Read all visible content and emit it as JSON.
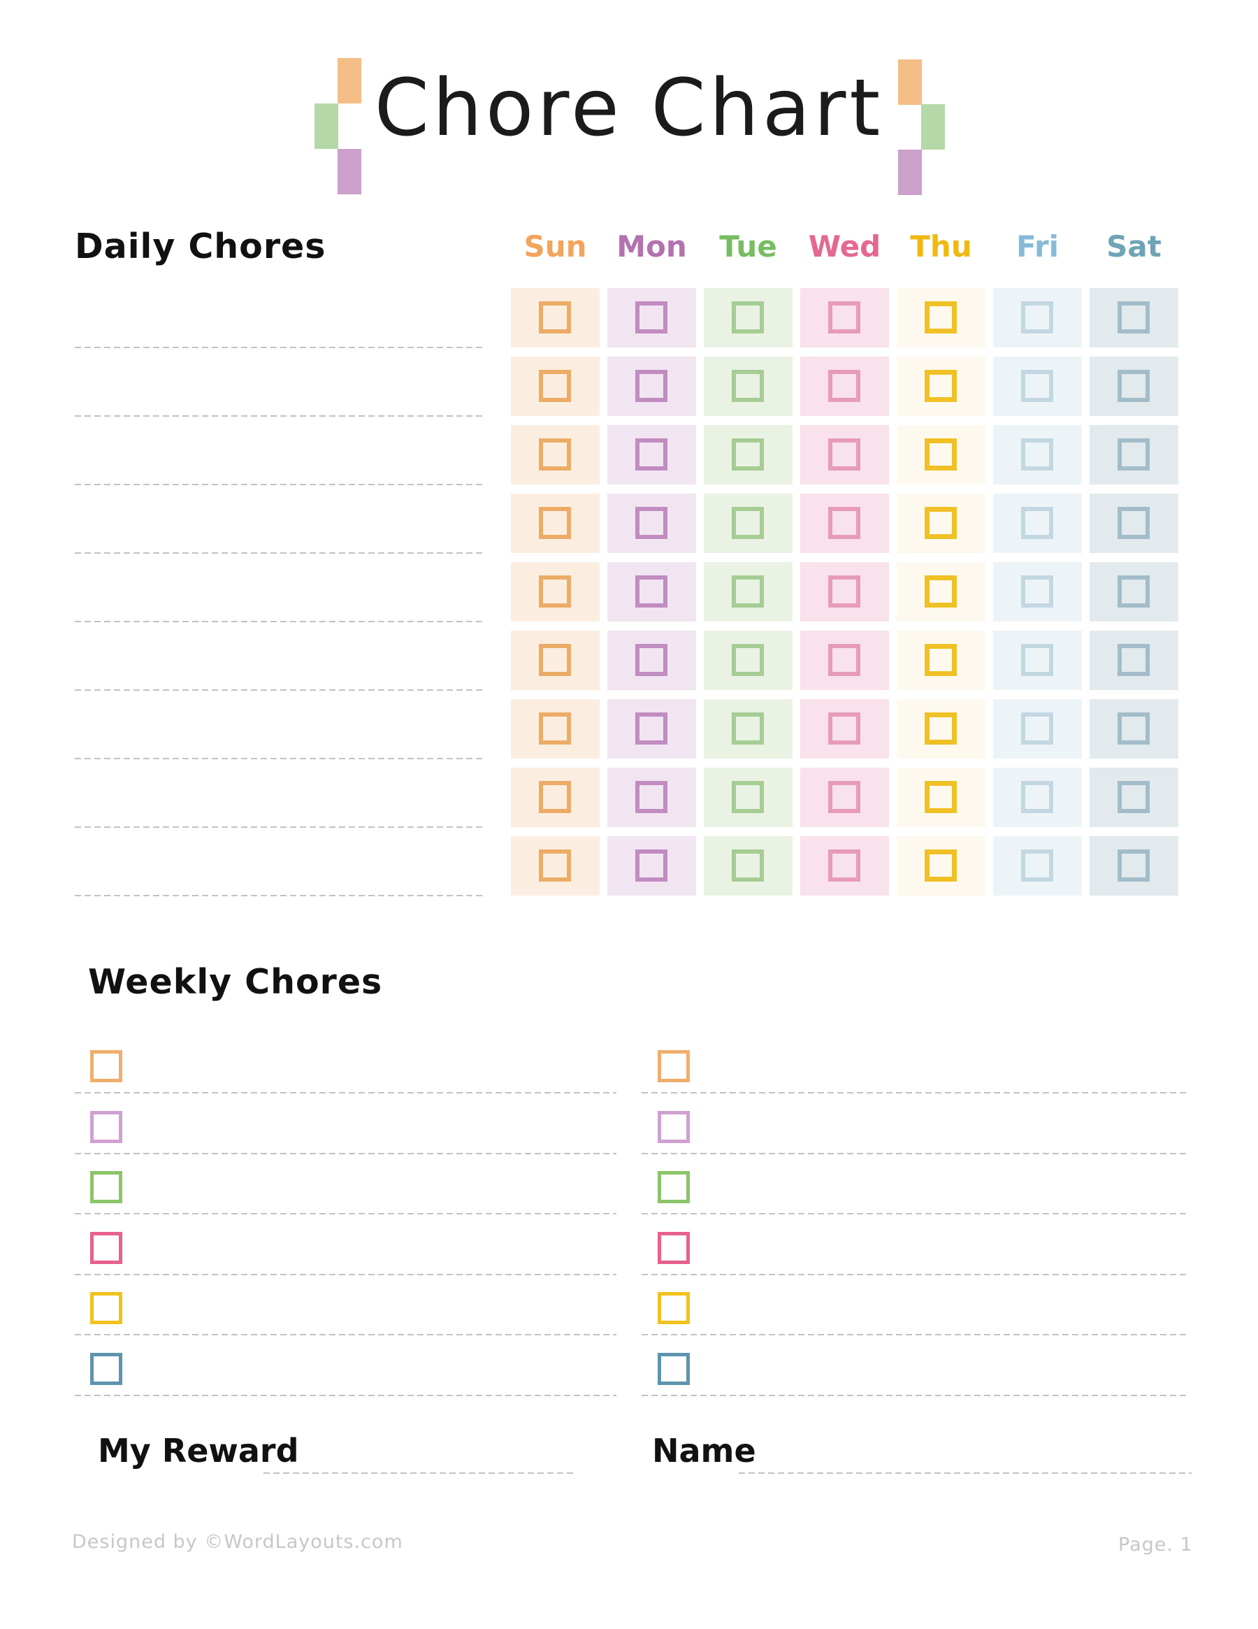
{
  "title": "Chore Chart",
  "decor": {
    "orange": "#F4BD85",
    "green": "#B5D8A8",
    "purple": "#CBA0CB"
  },
  "daily": {
    "heading": "Daily Chores",
    "rows": 9,
    "days": [
      {
        "label": "Sun",
        "label_color": "#F2A45C",
        "cell_bg": "#FBEEE1",
        "box_color": "#ECAC66"
      },
      {
        "label": "Mon",
        "label_color": "#B272AF",
        "cell_bg": "#F2E5F2",
        "box_color": "#C18CC0"
      },
      {
        "label": "Tue",
        "label_color": "#77BD62",
        "cell_bg": "#EAF2E4",
        "box_color": "#A6CD94"
      },
      {
        "label": "Wed",
        "label_color": "#E5688F",
        "cell_bg": "#F9E2EC",
        "box_color": "#E69CB8"
      },
      {
        "label": "Thu",
        "label_color": "#EFB90F",
        "cell_bg": "#FDF9EF",
        "box_color": "#F0C125",
        "box_bold": true
      },
      {
        "label": "Fri",
        "label_color": "#85BBD9",
        "cell_bg": "#EDF4F8",
        "box_color": "#C2D7E2"
      },
      {
        "label": "Sat",
        "label_color": "#6FA3B6",
        "cell_bg": "#E2EAED",
        "box_color": "#A2BDC9"
      }
    ]
  },
  "weekly": {
    "heading": "Weekly Chores",
    "columns": 2,
    "rows_per_column": 6,
    "box_colors": [
      "#F0AE6B",
      "#CFA0D2",
      "#8CC468",
      "#E7618C",
      "#F2C11E",
      "#5E94AE"
    ]
  },
  "fields": {
    "reward_label": "My Reward",
    "name_label": "Name"
  },
  "footer": {
    "credit": "Designed by ©WordLayouts.com",
    "page": "Page. 1"
  }
}
